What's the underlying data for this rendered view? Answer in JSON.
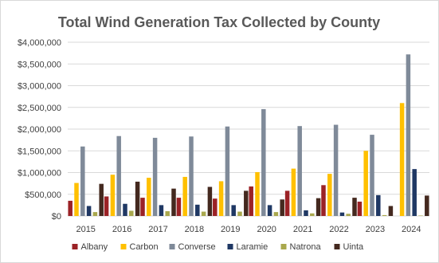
{
  "chart_data": {
    "type": "bar",
    "title": "Total Wind Generation Tax Collected by County",
    "xlabel": "",
    "ylabel": "",
    "categories": [
      "2015",
      "2016",
      "2017",
      "2018",
      "2019",
      "2020",
      "2021",
      "2022",
      "2023",
      "2024"
    ],
    "ylim": [
      0,
      4000000
    ],
    "y_ticks": [
      0,
      500000,
      1000000,
      1500000,
      2000000,
      2500000,
      3000000,
      3500000,
      4000000
    ],
    "y_tick_labels": [
      "$0",
      "$500,000",
      "$1,000,000",
      "$1,500,000",
      "$2,000,000",
      "$2,500,000",
      "$3,000,000",
      "$3,500,000",
      "$4,000,000"
    ],
    "grid": true,
    "legend_position": "bottom",
    "series": [
      {
        "name": "Albany",
        "color": "#9b2226",
        "values": [
          350000,
          450000,
          420000,
          420000,
          400000,
          680000,
          580000,
          710000,
          330000,
          0
        ]
      },
      {
        "name": "Carbon",
        "color": "#ffc000",
        "values": [
          760000,
          950000,
          880000,
          900000,
          800000,
          1010000,
          1090000,
          970000,
          1500000,
          2600000
        ]
      },
      {
        "name": "Converse",
        "color": "#7f8a99",
        "values": [
          1600000,
          1840000,
          1800000,
          1830000,
          2060000,
          2460000,
          2070000,
          2100000,
          1870000,
          3720000
        ]
      },
      {
        "name": "Laramie",
        "color": "#1f3864",
        "values": [
          230000,
          280000,
          250000,
          260000,
          250000,
          250000,
          130000,
          80000,
          480000,
          1080000
        ]
      },
      {
        "name": "Natrona",
        "color": "#a9a84d",
        "values": [
          90000,
          120000,
          110000,
          100000,
          100000,
          90000,
          60000,
          50000,
          20000,
          10000
        ]
      },
      {
        "name": "Uinta",
        "color": "#44291f",
        "values": [
          740000,
          790000,
          630000,
          670000,
          580000,
          380000,
          410000,
          420000,
          230000,
          470000
        ]
      }
    ]
  }
}
